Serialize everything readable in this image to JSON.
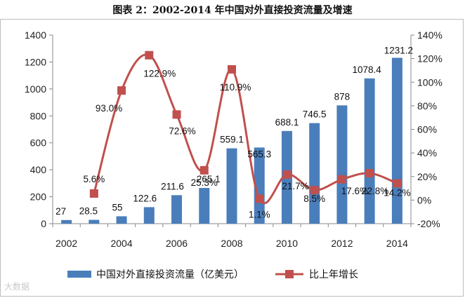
{
  "title": "图表 2：2002-2014 年中国对外直接投资流量及增速",
  "watermark": "大数据",
  "chart_data": {
    "type": "bar+line",
    "categories": [
      "2002",
      "2003",
      "2004",
      "2005",
      "2006",
      "2007",
      "2008",
      "2009",
      "2010",
      "2011",
      "2012",
      "2013",
      "2014"
    ],
    "x_tick_labels": [
      "2002",
      "2004",
      "2006",
      "2008",
      "2010",
      "2012",
      "2014"
    ],
    "series": [
      {
        "name": "中国对外直接投资流量（亿美元）",
        "type": "bar",
        "axis": "left",
        "color": "#4a7ebb",
        "values": [
          27,
          28.5,
          55,
          122.6,
          211.6,
          265.1,
          559.1,
          565.3,
          688.1,
          746.5,
          878,
          1078.4,
          1231.2
        ],
        "labels": [
          "27",
          "28.5",
          "55",
          "122.6",
          "211.6",
          "265.1",
          "559.1",
          "565.3",
          "688.1",
          "746.5",
          "878",
          "1078.4",
          "1231.2"
        ]
      },
      {
        "name": "比上年增长",
        "type": "line",
        "axis": "right",
        "color": "#c0504d",
        "values": [
          null,
          5.6,
          93.0,
          122.9,
          72.6,
          25.3,
          110.9,
          1.1,
          21.7,
          8.5,
          17.6,
          22.8,
          14.2
        ],
        "labels": [
          "",
          "5.6%",
          "93.0%",
          "122.9%",
          "72.6%",
          "25.3%",
          "110.9%",
          "1.1%",
          "21.7%",
          "8.5%",
          "17.6%",
          "22.8%",
          "14.2%"
        ]
      }
    ],
    "y_left": {
      "range": [
        0,
        1400
      ],
      "ticks": [
        "0",
        "200",
        "400",
        "600",
        "800",
        "1000",
        "1200",
        "1400"
      ]
    },
    "y_right": {
      "range": [
        -20,
        140
      ],
      "ticks": [
        "-20%",
        "0%",
        "20%",
        "40%",
        "60%",
        "80%",
        "100%",
        "120%",
        "140%"
      ]
    },
    "legend": {
      "position": "bottom",
      "items": [
        "中国对外直接投资流量（亿美元）",
        "比上年增长"
      ]
    }
  }
}
